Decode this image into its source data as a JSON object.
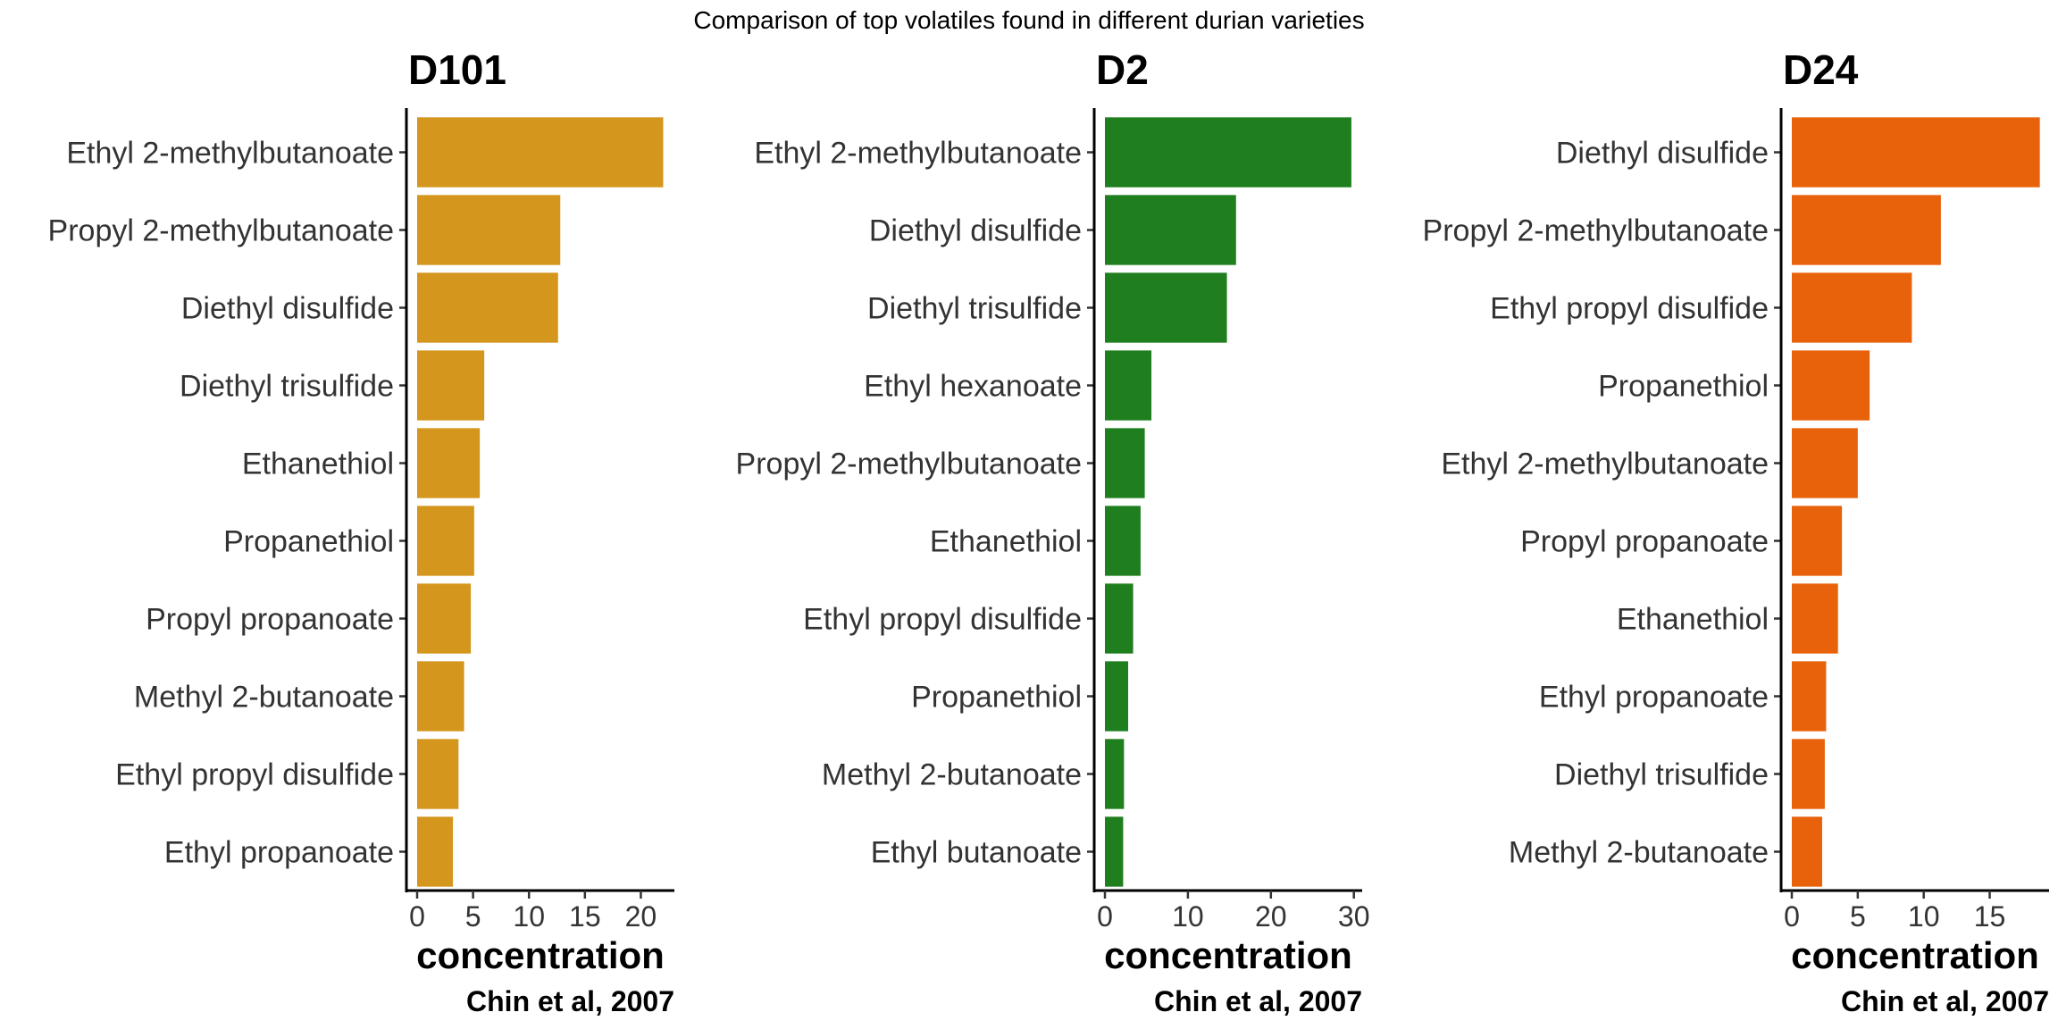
{
  "page": {
    "suptitle": "Comparison of top volatiles found in different durian varieties"
  },
  "chart_data": [
    {
      "type": "bar",
      "orientation": "horizontal",
      "title": "D101",
      "xlabel": "concentration",
      "caption": "Chin et al, 2007",
      "color": "#D4961C",
      "xlim": [
        0,
        23
      ],
      "xticks": [
        0,
        5,
        10,
        15,
        20
      ],
      "categories": [
        "Ethyl 2-methylbutanoate",
        "Propyl 2-methylbutanoate",
        "Diethyl disulfide",
        "Diethyl trisulfide",
        "Ethanethiol",
        "Propanethiol",
        "Propyl propanoate",
        "Methyl 2-butanoate",
        "Ethyl propyl disulfide",
        "Ethyl propanoate"
      ],
      "values": [
        22.0,
        12.8,
        12.6,
        6.0,
        5.6,
        5.1,
        4.8,
        4.2,
        3.7,
        3.2
      ]
    },
    {
      "type": "bar",
      "orientation": "horizontal",
      "title": "D2",
      "xlabel": "concentration",
      "caption": "Chin et al, 2007",
      "color": "#1F7F1F",
      "xlim": [
        0,
        31
      ],
      "xticks": [
        0,
        10,
        20,
        30
      ],
      "categories": [
        "Ethyl 2-methylbutanoate",
        "Diethyl disulfide",
        "Diethyl trisulfide",
        "Ethyl hexanoate",
        "Propyl 2-methylbutanoate",
        "Ethanethiol",
        "Ethyl propyl disulfide",
        "Propanethiol",
        "Methyl 2-butanoate",
        "Ethyl butanoate"
      ],
      "values": [
        29.7,
        15.8,
        14.7,
        5.6,
        4.8,
        4.3,
        3.4,
        2.8,
        2.3,
        2.2
      ]
    },
    {
      "type": "bar",
      "orientation": "horizontal",
      "title": "D24",
      "xlabel": "concentration",
      "caption": "Chin et al, 2007",
      "color": "#E8620C",
      "xlim": [
        0,
        19.5
      ],
      "xticks": [
        0,
        5,
        10,
        15
      ],
      "categories": [
        "Diethyl disulfide",
        "Propyl 2-methylbutanoate",
        "Ethyl propyl disulfide",
        "Propanethiol",
        "Ethyl 2-methylbutanoate",
        "Propyl propanoate",
        "Ethanethiol",
        "Ethyl propanoate",
        "Diethyl trisulfide",
        "Methyl 2-butanoate"
      ],
      "values": [
        18.8,
        11.3,
        9.1,
        5.9,
        5.0,
        3.8,
        3.5,
        2.6,
        2.5,
        2.3
      ]
    }
  ]
}
